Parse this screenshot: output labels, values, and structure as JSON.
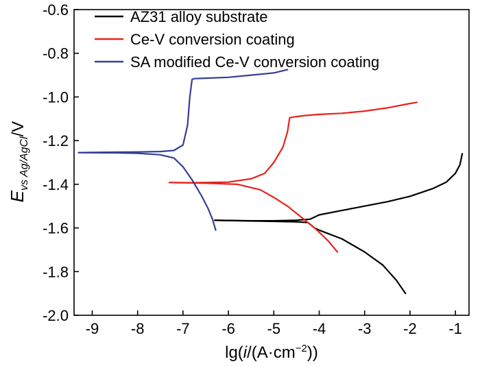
{
  "chart_data": {
    "type": "line",
    "title": "",
    "xlabel": "lg(i/(A·cm⁻²))",
    "xlabel_parts": {
      "pre": "lg(",
      "italic": "i",
      "mid": "/(A·cm",
      "sup": "−2",
      "post": "))"
    },
    "ylabel_parts": {
      "main": "E",
      "sub": "vs Ag/AgCl",
      "unit": "/V"
    },
    "xlim": [
      -9.4,
      -0.7
    ],
    "ylim": [
      -2.0,
      -0.6
    ],
    "xticks": [
      -9,
      -8,
      -7,
      -6,
      -5,
      -4,
      -3,
      -2,
      -1
    ],
    "xtick_labels": [
      "-9",
      "-8",
      "-7",
      "-6",
      "-5",
      "-4",
      "-3",
      "-2",
      "-1"
    ],
    "yticks": [
      -2.0,
      -1.8,
      -1.6,
      -1.4,
      -1.2,
      -1.0,
      -0.8,
      -0.6
    ],
    "ytick_labels": [
      "-2.0",
      "-1.8",
      "-1.6",
      "-1.4",
      "-1.2",
      "-1.0",
      "-0.8",
      "-0.6"
    ],
    "grid": false,
    "legend_position": "top-right",
    "series": [
      {
        "name": "AZ31 alloy substrate",
        "color": "#000000",
        "branches": [
          {
            "part": "anodic",
            "x": [
              -6.3,
              -5.5,
              -5.0,
              -4.5,
              -4.2,
              -4.0,
              -3.5,
              -3.0,
              -2.5,
              -2.0,
              -1.5,
              -1.2,
              -1.0,
              -0.9,
              -0.85
            ],
            "y": [
              -1.565,
              -1.567,
              -1.567,
              -1.565,
              -1.56,
              -1.54,
              -1.52,
              -1.5,
              -1.48,
              -1.455,
              -1.42,
              -1.39,
              -1.35,
              -1.31,
              -1.26
            ]
          },
          {
            "part": "cathodic",
            "x": [
              -6.3,
              -5.5,
              -5.0,
              -4.5,
              -4.25,
              -4.1,
              -4.0,
              -3.5,
              -3.0,
              -2.6,
              -2.3,
              -2.1
            ],
            "y": [
              -1.565,
              -1.568,
              -1.57,
              -1.572,
              -1.575,
              -1.6,
              -1.61,
              -1.65,
              -1.71,
              -1.77,
              -1.84,
              -1.9
            ]
          }
        ]
      },
      {
        "name": "Ce-V conversion coating",
        "color": "#e8221c",
        "branches": [
          {
            "part": "anodic",
            "x": [
              -7.3,
              -6.8,
              -6.0,
              -5.5,
              -5.2,
              -5.0,
              -4.8,
              -4.7,
              -4.65,
              -4.5,
              -4.3,
              -4.0,
              -3.5,
              -3.0,
              -2.5,
              -2.0,
              -1.85
            ],
            "y": [
              -1.392,
              -1.393,
              -1.39,
              -1.375,
              -1.35,
              -1.3,
              -1.23,
              -1.16,
              -1.095,
              -1.09,
              -1.085,
              -1.08,
              -1.075,
              -1.065,
              -1.05,
              -1.03,
              -1.025
            ]
          },
          {
            "part": "cathodic",
            "x": [
              -7.3,
              -6.5,
              -5.8,
              -5.3,
              -5.0,
              -4.7,
              -4.4,
              -4.1,
              -3.8,
              -3.6
            ],
            "y": [
              -1.392,
              -1.395,
              -1.4,
              -1.425,
              -1.46,
              -1.5,
              -1.55,
              -1.6,
              -1.66,
              -1.71
            ]
          }
        ]
      },
      {
        "name": "SA modified Ce-V conversion coating",
        "color": "#343e96",
        "branches": [
          {
            "part": "anodic",
            "x": [
              -9.3,
              -8.5,
              -8.0,
              -7.5,
              -7.2,
              -7.0,
              -6.9,
              -6.85,
              -6.8,
              -6.75,
              -6.6,
              -6.0,
              -5.5,
              -5.0,
              -4.7
            ],
            "y": [
              -1.255,
              -1.253,
              -1.252,
              -1.25,
              -1.245,
              -1.22,
              -1.13,
              -1.0,
              -0.92,
              -0.916,
              -0.915,
              -0.91,
              -0.9,
              -0.89,
              -0.875
            ]
          },
          {
            "part": "cathodic",
            "x": [
              -9.3,
              -8.5,
              -8.0,
              -7.5,
              -7.2,
              -7.0,
              -6.8,
              -6.6,
              -6.45,
              -6.35,
              -6.28
            ],
            "y": [
              -1.255,
              -1.256,
              -1.258,
              -1.265,
              -1.28,
              -1.32,
              -1.38,
              -1.45,
              -1.51,
              -1.56,
              -1.61
            ]
          }
        ]
      }
    ]
  }
}
